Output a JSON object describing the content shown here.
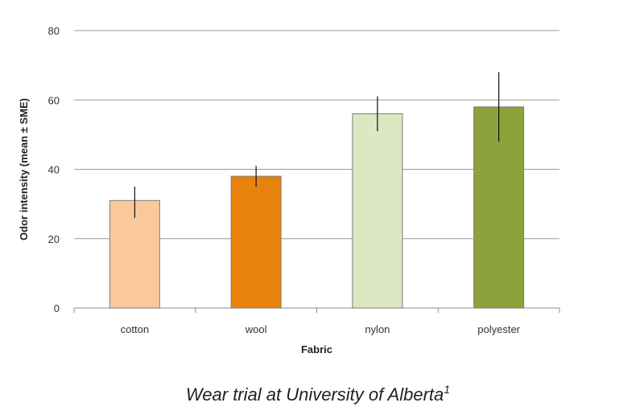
{
  "chart_data": {
    "type": "bar",
    "title": "",
    "xlabel": "Fabric",
    "ylabel": "Odor intensity (mean ± SME)",
    "categories": [
      "cotton",
      "wool",
      "nylon",
      "polyester"
    ],
    "values": [
      31,
      38,
      56,
      58
    ],
    "errors": [
      {
        "low": 26,
        "high": 35
      },
      {
        "low": 35,
        "high": 41
      },
      {
        "low": 51,
        "high": 61
      },
      {
        "low": 48,
        "high": 68
      }
    ],
    "colors": [
      "#F9C89B",
      "#E8820C",
      "#DDE8C2",
      "#8CA23A"
    ],
    "ylim": [
      0,
      80
    ],
    "yticks": [
      0,
      20,
      40,
      60,
      80
    ],
    "grid": true,
    "legend": "none"
  },
  "caption": {
    "text": "Wear trial at University of Alberta",
    "superscript": "1"
  }
}
